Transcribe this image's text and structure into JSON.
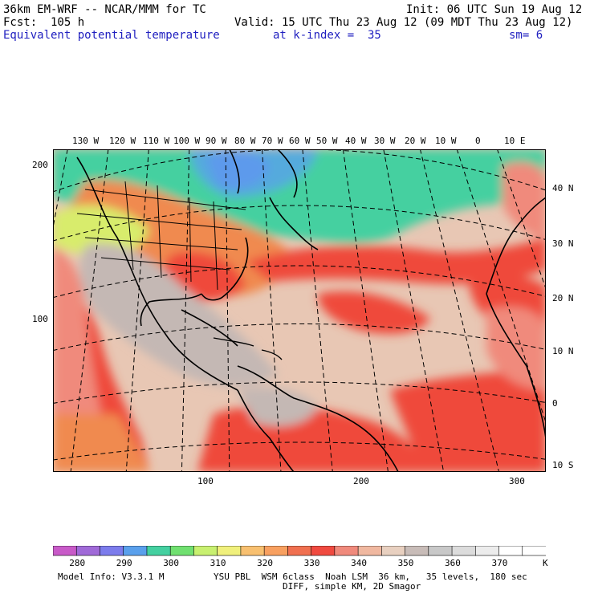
{
  "header": {
    "title_left": "36km EM-WRF -- NCAR/MMM for TC",
    "init": "Init: 06 UTC Sun 19 Aug 12",
    "fcst": "Fcst:  105 h",
    "valid": "Valid: 15 UTC Thu 23 Aug 12 (09 MDT Thu 23 Aug 12)",
    "field": "Equivalent potential temperature",
    "level": "at k-index =  35",
    "smooth": "sm= 6"
  },
  "map": {
    "lon_labels": [
      "130 W",
      "120 W",
      "110 W",
      "100 W",
      "90 W",
      "80 W",
      "70 W",
      "60 W",
      "50 W",
      "40 W",
      "30 W",
      "20 W",
      "10 W",
      "0",
      "10 E"
    ],
    "lat_labels": [
      "40 N",
      "30 N",
      "20 N",
      "10 N",
      "0",
      "10 S"
    ],
    "grid_y_labels": [
      "200",
      "100"
    ],
    "grid_x_labels": [
      "100",
      "200",
      "300"
    ],
    "colors": {
      "cold": "#6a82e8",
      "cool": "#44d0a0",
      "mild": "#d8ec6c",
      "warm": "#f08a50",
      "hot": "#ef4a3a",
      "tropical": "#e8c7b4",
      "grey": "#c4b8b4"
    }
  },
  "colorbar": {
    "labels": [
      "280",
      "290",
      "300",
      "310",
      "320",
      "330",
      "340",
      "350",
      "360",
      "370"
    ],
    "unit": "K",
    "colors": [
      "#c85ac8",
      "#a06ad8",
      "#7c7cec",
      "#5aa0ec",
      "#44d0a0",
      "#70e070",
      "#c8f070",
      "#f0f07c",
      "#f8c070",
      "#f8a060",
      "#f07050",
      "#f04a40",
      "#f08a7c",
      "#f0b8a0",
      "#e8d0c0",
      "#c8bcb8",
      "#c8c8c8",
      "#dcdcdc",
      "#ececec",
      "#ffffff",
      "#ffffff"
    ]
  },
  "footer": {
    "model_info": "Model Info: V3.3.1 M",
    "physics": "YSU PBL  WSM 6class  Noah LSM  36 km,   35 levels,  180 sec",
    "diff": "DIFF, simple KM, 2D Smagor"
  }
}
